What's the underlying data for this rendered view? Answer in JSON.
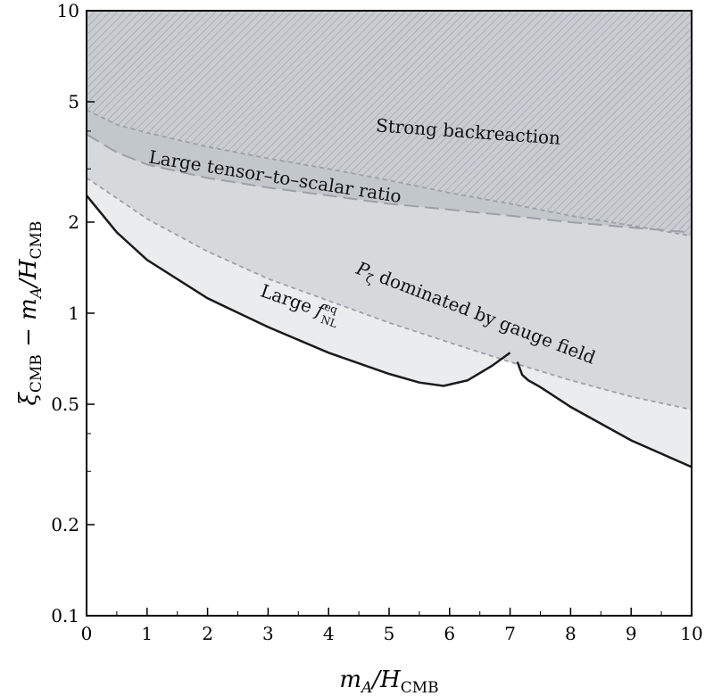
{
  "chart_data": {
    "type": "area",
    "title": "",
    "xlabel": "m_A/H_CMB",
    "ylabel": "ξ_CMB − m_A/H_CMB",
    "xlim": [
      0,
      10
    ],
    "ylim": [
      0.1,
      10
    ],
    "yscale": "log",
    "grid": false,
    "x_ticks": [
      "0",
      "1",
      "2",
      "3",
      "4",
      "5",
      "6",
      "7",
      "8",
      "9",
      "10"
    ],
    "y_ticks": [
      "0.1",
      "0.2",
      "0.5",
      "1",
      "2",
      "5",
      "10"
    ],
    "colors": {
      "strong_fill": "#c9cdd2",
      "hatch": "#9aa0a8",
      "tensor_fill": "#c2c7cc",
      "gauge_fill": "#d6d9dc",
      "fnl_fill": "#ebecee",
      "dashed": "#9ca1a7",
      "boundary": "#1a1a1a"
    },
    "series": [
      {
        "name": "Strong backreaction",
        "style": "short-dashed boundary, hatched region above",
        "x": [
          0,
          0.5,
          1,
          2,
          3,
          4,
          5,
          6,
          7,
          8,
          9,
          10
        ],
        "y": [
          4.7,
          4.2,
          3.95,
          3.55,
          3.25,
          3.0,
          2.75,
          2.5,
          2.3,
          2.1,
          1.95,
          1.8
        ]
      },
      {
        "name": "Large tensor-to-scalar ratio",
        "style": "long-dashed boundary",
        "x": [
          0,
          0.5,
          1,
          2,
          3,
          4,
          5,
          6,
          7,
          8,
          9,
          10
        ],
        "y": [
          3.9,
          3.4,
          3.1,
          2.8,
          2.6,
          2.45,
          2.3,
          2.2,
          2.1,
          2.0,
          1.92,
          1.85
        ]
      },
      {
        "name": "P_ζ dominated by gauge field",
        "style": "short-dashed boundary",
        "x": [
          0,
          0.5,
          1,
          2,
          3,
          4,
          5,
          6,
          7,
          8,
          9,
          10
        ],
        "y": [
          2.8,
          2.4,
          2.05,
          1.6,
          1.3,
          1.1,
          0.93,
          0.8,
          0.69,
          0.6,
          0.53,
          0.48
        ]
      },
      {
        "name": "Large f_NL^eq",
        "style": "solid boundary",
        "segments": [
          {
            "x": [
              0,
              0.5,
              1,
              2,
              3,
              4,
              5,
              5.5,
              5.9,
              6.3,
              6.7,
              7.0
            ],
            "y": [
              2.45,
              1.85,
              1.5,
              1.12,
              0.9,
              0.74,
              0.63,
              0.59,
              0.575,
              0.6,
              0.67,
              0.74
            ]
          },
          {
            "x": [
              7.12,
              7.2,
              7.3,
              7.5,
              8,
              9,
              10
            ],
            "y": [
              0.69,
              0.625,
              0.6,
              0.57,
              0.49,
              0.38,
              0.31
            ]
          }
        ]
      }
    ],
    "annotations": [
      {
        "text": "Strong backreaction",
        "x": 6.3,
        "y": 3.8,
        "angle": 4
      },
      {
        "text": "Large tensor–to–scalar ratio",
        "x": 3.1,
        "y": 2.7,
        "angle": 9
      },
      {
        "text": "P",
        "sub": "ζ",
        "rest": " dominated by gauge field",
        "x": 6.4,
        "y": 0.96,
        "angle": 21
      },
      {
        "text": "Large ",
        "math": "f",
        "sup": "eq",
        "sub": "NL",
        "x": 3.5,
        "y": 1.03,
        "angle": 19
      }
    ]
  }
}
